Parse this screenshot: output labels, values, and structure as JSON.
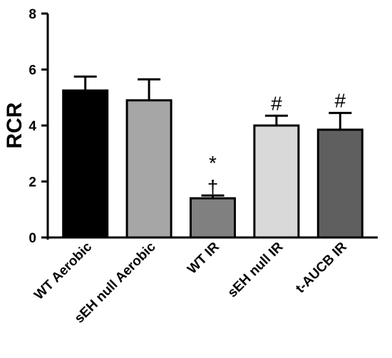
{
  "chart_data": {
    "type": "bar",
    "title": "",
    "xlabel": "",
    "ylabel": "RCR",
    "ylim": [
      0,
      8
    ],
    "yticks": [
      "0",
      "2",
      "4",
      "6",
      "8"
    ],
    "grid": false,
    "legend": "none",
    "categories": [
      "WT Aerobic",
      "sEH null Aerobic",
      "WT IR",
      "sEH null IR",
      "t-AUCB IR"
    ],
    "values": [
      5.25,
      4.9,
      1.4,
      4.0,
      3.85
    ],
    "errors": [
      0.5,
      0.75,
      0.1,
      0.35,
      0.6
    ],
    "colors": [
      "#000000",
      "#a6a6a6",
      "#808080",
      "#d9d9d9",
      "#5f5f5f"
    ],
    "annotations": [
      "",
      "",
      "*\n†",
      "#",
      "#"
    ]
  }
}
